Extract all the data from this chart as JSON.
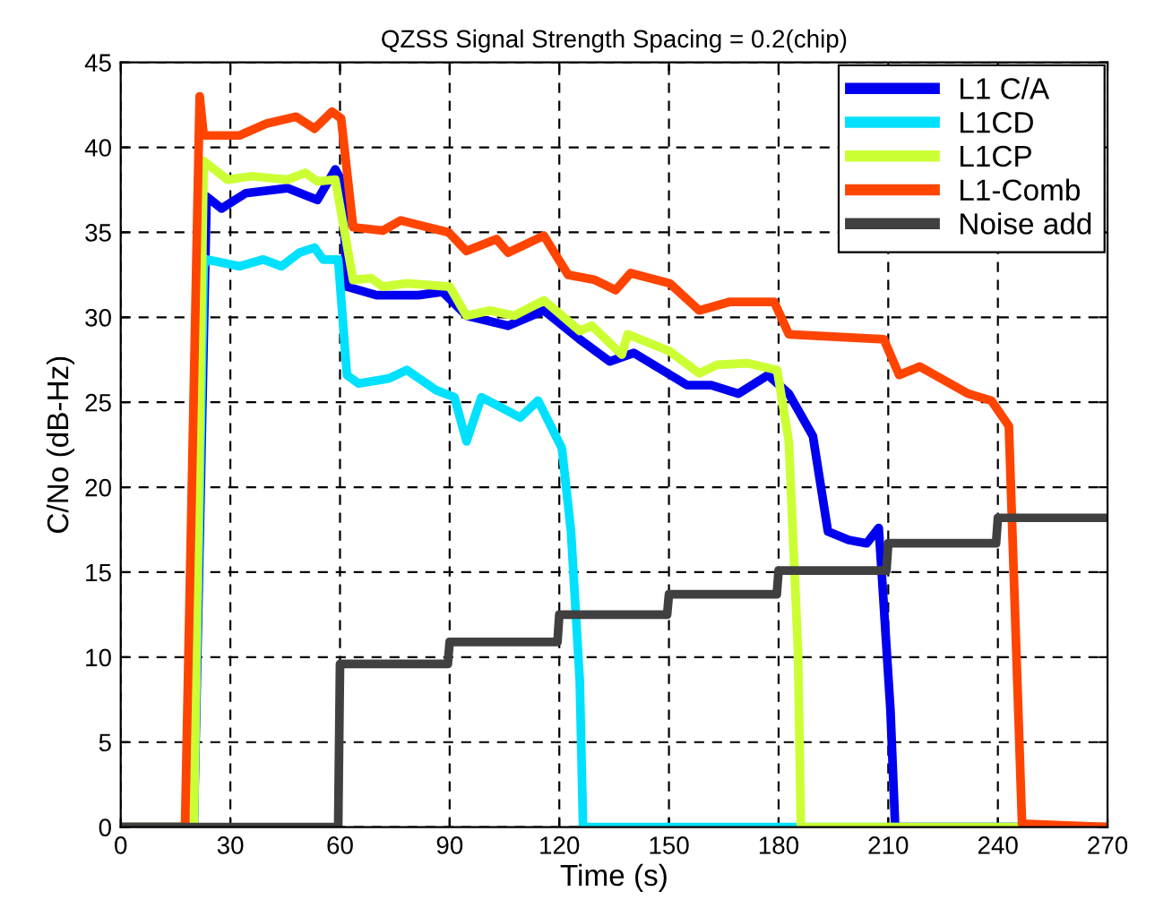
{
  "chart_data": {
    "type": "line",
    "title": "QZSS Signal Strength Spacing = 0.2(chip)",
    "xlabel": "Time (s)",
    "ylabel": "C/No (dB-Hz)",
    "xlim": [
      0,
      270
    ],
    "xticks": [
      0,
      30,
      60,
      90,
      120,
      150,
      180,
      210,
      240,
      270
    ],
    "ylim": [
      0,
      45
    ],
    "yticks": [
      0,
      5,
      10,
      15,
      20,
      25,
      30,
      35,
      40,
      45
    ],
    "grid": true,
    "legend": "top right",
    "line_style": "solid",
    "marker": "none",
    "series": [
      {
        "name": "L1 C/A",
        "color": "#0000f0",
        "x": [
          0,
          20,
          23.5,
          27.6,
          34.2,
          45.6,
          53.8,
          58.7,
          60.5,
          61.9,
          70,
          81.5,
          88,
          94.6,
          106,
          115.8,
          125.6,
          133.8,
          140.4,
          155,
          161.6,
          169,
          177.1,
          182.8,
          189.4,
          193.5,
          199.2,
          204.1,
          207.4,
          208.2,
          210.6,
          211.9,
          270
        ],
        "values": [
          0,
          0,
          37.1,
          36.4,
          37.3,
          37.6,
          36.9,
          38.7,
          38,
          31.8,
          31.3,
          31.3,
          31.5,
          30.1,
          29.5,
          30.4,
          28.7,
          27.4,
          27.9,
          26,
          26,
          25.5,
          26.6,
          25.5,
          23,
          17.4,
          16.9,
          16.7,
          17.6,
          15,
          6.9,
          0,
          0
        ]
      },
      {
        "name": "L1CD",
        "color": "#00e0ff",
        "x": [
          0,
          20,
          22.7,
          23.5,
          32.5,
          39,
          44,
          48.9,
          53,
          55.4,
          59.5,
          61.9,
          65.1,
          73.4,
          78.3,
          86.4,
          91.3,
          94.6,
          98.7,
          109.3,
          114.2,
          120.7,
          123.2,
          125.6,
          126.5,
          270
        ],
        "values": [
          0,
          0,
          33,
          33.4,
          33,
          33.4,
          33,
          33.8,
          34.1,
          33.4,
          33.4,
          26.6,
          26.1,
          26.4,
          26.9,
          25.7,
          25.3,
          22.7,
          25.3,
          24.1,
          25.1,
          22.3,
          17.4,
          8.6,
          0,
          0
        ]
      },
      {
        "name": "L1CP",
        "color": "#ccff33",
        "x": [
          0,
          20,
          22.7,
          29.2,
          35.8,
          45.6,
          50.5,
          53.8,
          58.7,
          63.6,
          68.5,
          71.7,
          78.3,
          90,
          94.6,
          101.1,
          107.7,
          115.8,
          125.6,
          128.9,
          137.1,
          138.7,
          150.2,
          158.3,
          163.2,
          171.4,
          179.6,
          182.8,
          185.3,
          186.1,
          270
        ],
        "values": [
          0,
          0,
          39.2,
          38.1,
          38.3,
          38.1,
          38.5,
          38,
          38.1,
          32.2,
          32.3,
          31.8,
          32,
          31.8,
          30.1,
          30.4,
          30.1,
          31,
          29.2,
          29.5,
          27.8,
          29,
          28,
          26.7,
          27.2,
          27.3,
          26.9,
          22.7,
          10.4,
          0,
          0
        ]
      },
      {
        "name": "L1-Comb",
        "color": "#ff4400",
        "x": [
          0,
          17.6,
          21.6,
          22.7,
          32.5,
          39.9,
          48,
          53,
          57.8,
          60.3,
          63.6,
          71.7,
          76.6,
          89.7,
          94.6,
          102.8,
          106,
          115.8,
          122.4,
          129.7,
          135.4,
          139.5,
          150.2,
          158.3,
          166.5,
          178.8,
          182.8,
          208.8,
          213,
          218.6,
          231.9,
          238.2,
          243,
          246.6,
          270
        ],
        "values": [
          0,
          0,
          43,
          40.7,
          40.7,
          41.4,
          41.8,
          41.1,
          42.1,
          41.7,
          35.3,
          35.1,
          35.7,
          35,
          33.9,
          34.6,
          33.8,
          34.8,
          32.5,
          32.2,
          31.6,
          32.6,
          32,
          30.4,
          30.9,
          30.9,
          29,
          28.7,
          26.6,
          27.1,
          25.5,
          25.1,
          23.6,
          0.2,
          0
        ]
      },
      {
        "name": "Noise add",
        "color": "#404040",
        "x": [
          0,
          59.5,
          60,
          89.5,
          90,
          119.5,
          120,
          149.5,
          150,
          179.5,
          180,
          209.5,
          210,
          239.5,
          240,
          270
        ],
        "values": [
          0,
          0,
          9.6,
          9.6,
          10.9,
          10.9,
          12.5,
          12.5,
          13.7,
          13.7,
          15.1,
          15.1,
          16.7,
          16.7,
          18.2,
          18.2
        ]
      }
    ]
  }
}
